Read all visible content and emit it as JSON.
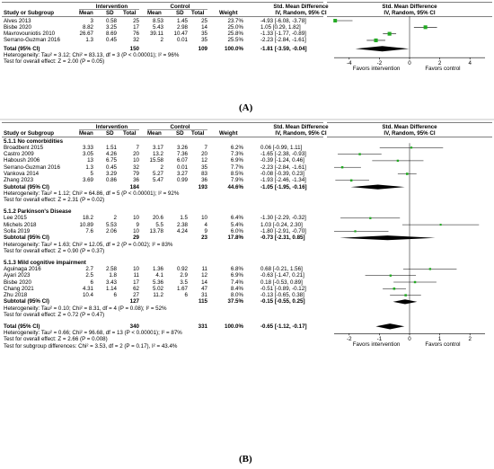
{
  "panelA": {
    "label": "(A)",
    "headers": {
      "study": "Study or Subgroup",
      "group1": "Intervention",
      "group2": "Control",
      "mean": "Mean",
      "sd": "SD",
      "total": "Total",
      "weight": "Weight",
      "effect_title": "Std. Mean Difference",
      "effect_sub": "IV, Random, 95% CI",
      "plot_title": "Std. Mean Difference",
      "plot_sub": "IV, Random, 95% CI"
    },
    "rows": [
      {
        "study": "Alves 2013",
        "m1": "3",
        "sd1": "0.58",
        "n1": "25",
        "m2": "8.53",
        "sd2": "1.45",
        "n2": "25",
        "weight": "23.7%",
        "ci": "-4.93 [-6.08, -3.78]"
      },
      {
        "study": "Bisbe 2020",
        "m1": "8.82",
        "sd1": "3.25",
        "n1": "17",
        "m2": "5.43",
        "sd2": "2.98",
        "n2": "14",
        "weight": "25.0%",
        "ci": "1.05 [0.29, 1.82]"
      },
      {
        "study": "Mavrovouniotis 2010",
        "m1": "26.67",
        "sd1": "8.69",
        "n1": "76",
        "m2": "39.11",
        "sd2": "10.47",
        "n2": "35",
        "weight": "25.8%",
        "ci": "-1.33 [-1.77, -0.89]"
      },
      {
        "study": "Serrano-Guzman 2016",
        "m1": "1.3",
        "sd1": "0.45",
        "n1": "32",
        "m2": "2",
        "sd2": "0.01",
        "n2": "35",
        "weight": "25.5%",
        "ci": "-2.23 [-2.84, -1.61]"
      }
    ],
    "total": {
      "study": "Total (95% CI)",
      "n1": "150",
      "n2": "109",
      "weight": "100.0%",
      "ci": "-1.81 [-3.59, -0.04]"
    },
    "heterogeneity": "Heterogeneity: Tau² = 3.12; Chi² = 83.13, df = 3 (P < 0.00001); I² = 96%",
    "overall": "Test for overall effect: Z = 2.00 (P = 0.05)",
    "axis_ticks": [
      "-4",
      "-2",
      "0",
      "2",
      "4"
    ],
    "favors_left": "Favors intervention",
    "favors_right": "Favors control"
  },
  "panelB": {
    "label": "(B)",
    "headers": {
      "study": "Study or Subgroup",
      "group1": "Intervention",
      "group2": "Control",
      "mean": "Mean",
      "sd": "SD",
      "total": "Total",
      "weight": "Weight",
      "effect_title": "Std. Mean Difference",
      "effect_sub": "IV, Random, 95% CI",
      "plot_title": "Std. Mean Difference",
      "plot_sub": "IV, Random, 95% CI"
    },
    "subgroups": [
      {
        "title": "5.1.1 No comorbidities",
        "rows": [
          {
            "study": "Broadbent 2015",
            "m1": "3.33",
            "sd1": "1.51",
            "n1": "7",
            "m2": "3.17",
            "sd2": "3.26",
            "n2": "7",
            "weight": "6.2%",
            "ci": "0.06 [-0.99, 1.11]"
          },
          {
            "study": "Castro 2009",
            "m1": "3.05",
            "sd1": "4.26",
            "n1": "20",
            "m2": "13.2",
            "sd2": "7.36",
            "n2": "20",
            "weight": "7.3%",
            "ci": "-1.65 [-2.38, -0.93]"
          },
          {
            "study": "Haboush 2006",
            "m1": "13",
            "sd1": "6.75",
            "n1": "10",
            "m2": "15.58",
            "sd2": "6.07",
            "n2": "12",
            "weight": "6.9%",
            "ci": "-0.39 [-1.24, 0.46]"
          },
          {
            "study": "Serrano-Guzman 2016",
            "m1": "1.3",
            "sd1": "0.45",
            "n1": "32",
            "m2": "2",
            "sd2": "0.01",
            "n2": "35",
            "weight": "7.7%",
            "ci": "-2.23 [-2.84, -1.61]"
          },
          {
            "study": "Vankova 2014",
            "m1": "5",
            "sd1": "3.29",
            "n1": "79",
            "m2": "5.27",
            "sd2": "3.27",
            "n2": "83",
            "weight": "8.5%",
            "ci": "-0.08 [-0.39, 0.23]"
          },
          {
            "study": "Zhang 2023",
            "m1": "3.69",
            "sd1": "0.86",
            "n1": "36",
            "m2": "5.47",
            "sd2": "0.99",
            "n2": "36",
            "weight": "7.9%",
            "ci": "-1.93 [-2.46, -1.34]"
          }
        ],
        "subtotal": {
          "study": "Subtotal (95% CI)",
          "n1": "184",
          "n2": "193",
          "weight": "44.6%",
          "ci": "-1.05 [-1.95, -0.16]"
        },
        "heterogeneity": "Heterogeneity: Tau² = 1.12; Chi² = 64.86, df = 5 (P < 0.00001); I² = 92%",
        "overall": "Test for overall effect: Z = 2.31 (P = 0.02)"
      },
      {
        "title": "5.1.2 Parkinson's Disease",
        "rows": [
          {
            "study": "Lee 2015",
            "m1": "18.2",
            "sd1": "2",
            "n1": "10",
            "m2": "20.6",
            "sd2": "1.5",
            "n2": "10",
            "weight": "6.4%",
            "ci": "-1.30 [-2.29, -0.32]"
          },
          {
            "study": "Michels 2018",
            "m1": "10.89",
            "sd1": "5.53",
            "n1": "9",
            "m2": "5.5",
            "sd2": "2.38",
            "n2": "4",
            "weight": "5.4%",
            "ci": "1.03 [-0.24, 2.30]"
          },
          {
            "study": "Solla 2019",
            "m1": "7.6",
            "sd1": "2.06",
            "n1": "10",
            "m2": "13.78",
            "sd2": "4.24",
            "n2": "9",
            "weight": "6.0%",
            "ci": "-1.80 [-2.91, -0.70]"
          }
        ],
        "subtotal": {
          "study": "Subtotal (95% CI)",
          "n1": "29",
          "n2": "23",
          "weight": "17.8%",
          "ci": "-0.73 [-2.31, 0.85]"
        },
        "heterogeneity": "Heterogeneity: Tau² = 1.63; Chi² = 12.05, df = 2 (P = 0.002); I² = 83%",
        "overall": "Test for overall effect: Z = 0.90 (P = 0.37)"
      },
      {
        "title": "5.1.3 Mild cognitive impairment",
        "rows": [
          {
            "study": "Aguinaga 2016",
            "m1": "2.7",
            "sd1": "2.58",
            "n1": "10",
            "m2": "1.36",
            "sd2": "0.92",
            "n2": "11",
            "weight": "6.8%",
            "ci": "0.68 [-0.21, 1.56]"
          },
          {
            "study": "Ayari 2023",
            "m1": "2.5",
            "sd1": "1.8",
            "n1": "11",
            "m2": "4.1",
            "sd2": "2.9",
            "n2": "12",
            "weight": "6.9%",
            "ci": "-0.63 [-1.47, 0.21]"
          },
          {
            "study": "Bisbe 2020",
            "m1": "6",
            "sd1": "3.43",
            "n1": "17",
            "m2": "5.36",
            "sd2": "3.5",
            "n2": "14",
            "weight": "7.4%",
            "ci": "0.18 [-0.53, 0.89]"
          },
          {
            "study": "Chang 2021",
            "m1": "4.31",
            "sd1": "1.14",
            "n1": "62",
            "m2": "5.02",
            "sd2": "1.67",
            "n2": "47",
            "weight": "8.4%",
            "ci": "-0.51 [-0.89, -0.12]"
          },
          {
            "study": "Zhu 2018",
            "m1": "10.4",
            "sd1": "6",
            "n1": "27",
            "m2": "11.2",
            "sd2": "6",
            "n2": "31",
            "weight": "8.0%",
            "ci": "-0.13 [-0.65, 0.38]"
          }
        ],
        "subtotal": {
          "study": "Subtotal (95% CI)",
          "n1": "127",
          "n2": "115",
          "weight": "37.5%",
          "ci": "-0.15 [-0.55, 0.25]"
        },
        "heterogeneity": "Heterogeneity: Tau² = 0.10; Chi² = 8.31, df = 4 (P = 0.08); I² = 52%",
        "overall": "Test for overall effect: Z = 0.72 (P = 0.47)"
      }
    ],
    "total": {
      "study": "Total (95% CI)",
      "n1": "340",
      "n2": "331",
      "weight": "100.0%",
      "ci": "-0.65 [-1.12, -0.17]"
    },
    "heterogeneity": "Heterogeneity: Tau² = 0.66; Chi² = 96.68, df = 13 (P < 0.00001); I² = 87%",
    "overall": "Test for overall effect: Z = 2.66 (P = 0.008)",
    "subgroup_diff": "Test for subgroup differences: Chi² = 3.53, df = 2 (P = 0.17), I² = 43.4%",
    "axis_ticks": [
      "-2",
      "-1",
      "0",
      "1",
      "2"
    ],
    "favors_left": "Favors intervention",
    "favors_right": "Favors control"
  },
  "chart_data": [
    {
      "type": "forest",
      "axis_ticks": [
        "-4",
        "-2",
        "0",
        "2",
        "4"
      ],
      "xlim": [
        -5,
        5
      ],
      "studies": [
        {
          "name": "Alves 2013",
          "est": -4.93,
          "lo": -6.08,
          "hi": -3.78,
          "weight": 23.7
        },
        {
          "name": "Bisbe 2020",
          "est": 1.05,
          "lo": 0.29,
          "hi": 1.82,
          "weight": 25.0
        },
        {
          "name": "Mavrovouniotis 2010",
          "est": -1.33,
          "lo": -1.77,
          "hi": -0.89,
          "weight": 25.8
        },
        {
          "name": "Serrano-Guzman 2016",
          "est": -2.23,
          "lo": -2.84,
          "hi": -1.61,
          "weight": 25.5
        }
      ],
      "total": {
        "est": -1.81,
        "lo": -3.59,
        "hi": -0.04
      }
    },
    {
      "type": "forest",
      "axis_ticks": [
        "-2",
        "-1",
        "0",
        "1",
        "2"
      ],
      "xlim": [
        -2.5,
        2.5
      ],
      "studies": [
        {
          "name": "Broadbent 2015",
          "est": 0.06,
          "lo": -0.99,
          "hi": 1.11,
          "weight": 6.2
        },
        {
          "name": "Castro 2009",
          "est": -1.65,
          "lo": -2.38,
          "hi": -0.93,
          "weight": 7.3
        },
        {
          "name": "Haboush 2006",
          "est": -0.39,
          "lo": -1.24,
          "hi": 0.46,
          "weight": 6.9
        },
        {
          "name": "Serrano-Guzman 2016",
          "est": -2.23,
          "lo": -2.84,
          "hi": -1.61,
          "weight": 7.7
        },
        {
          "name": "Vankova 2014",
          "est": -0.08,
          "lo": -0.39,
          "hi": 0.23,
          "weight": 8.5
        },
        {
          "name": "Zhang 2023",
          "est": -1.93,
          "lo": -2.46,
          "hi": -1.34,
          "weight": 7.9
        },
        {
          "name": "Subtotal 5.1.1",
          "est": -1.05,
          "lo": -1.95,
          "hi": -0.16,
          "diamond": true
        },
        {
          "name": "Lee 2015",
          "est": -1.3,
          "lo": -2.29,
          "hi": -0.32,
          "weight": 6.4
        },
        {
          "name": "Michels 2018",
          "est": 1.03,
          "lo": -0.24,
          "hi": 2.3,
          "weight": 5.4
        },
        {
          "name": "Solla 2019",
          "est": -1.8,
          "lo": -2.91,
          "hi": -0.7,
          "weight": 6.0
        },
        {
          "name": "Subtotal 5.1.2",
          "est": -0.73,
          "lo": -2.31,
          "hi": 0.85,
          "diamond": true
        },
        {
          "name": "Aguinaga 2016",
          "est": 0.68,
          "lo": -0.21,
          "hi": 1.56,
          "weight": 6.8
        },
        {
          "name": "Ayari 2023",
          "est": -0.63,
          "lo": -1.47,
          "hi": 0.21,
          "weight": 6.9
        },
        {
          "name": "Bisbe 2020",
          "est": 0.18,
          "lo": -0.53,
          "hi": 0.89,
          "weight": 7.4
        },
        {
          "name": "Chang 2021",
          "est": -0.51,
          "lo": -0.89,
          "hi": -0.12,
          "weight": 8.4
        },
        {
          "name": "Zhu 2018",
          "est": -0.13,
          "lo": -0.65,
          "hi": 0.38,
          "weight": 8.0
        },
        {
          "name": "Subtotal 5.1.3",
          "est": -0.15,
          "lo": -0.55,
          "hi": 0.25,
          "diamond": true
        }
      ],
      "total": {
        "est": -0.65,
        "lo": -1.12,
        "hi": -0.17
      }
    }
  ]
}
